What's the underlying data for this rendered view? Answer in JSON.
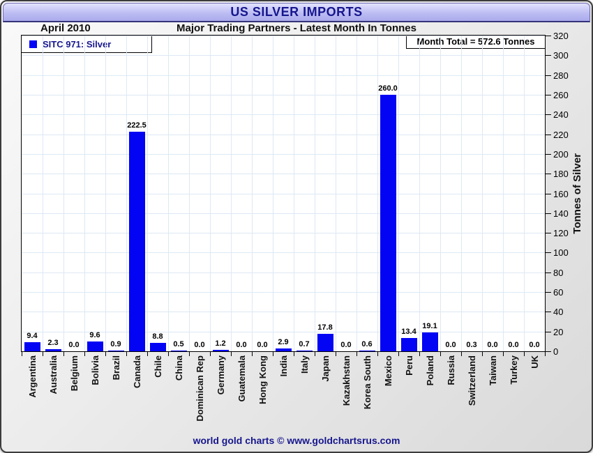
{
  "header": {
    "title": "US SILVER IMPORTS"
  },
  "subheader": {
    "period": "April 2010",
    "title": "Major Trading Partners - Latest Month In Tonnes"
  },
  "legend": {
    "label": "SITC 971: Silver"
  },
  "annotation": {
    "month_total_label": "Month Total = 572.6 Tonnes"
  },
  "chart_data": {
    "type": "bar",
    "title": "US SILVER IMPORTS",
    "subtitle": "Major Trading Partners - Latest Month In Tonnes",
    "period": "April 2010",
    "series_name": "SITC 971: Silver",
    "categories": [
      "Argentina",
      "Australia",
      "Belgium",
      "Bolivia",
      "Brazil",
      "Canada",
      "Chile",
      "China",
      "Dominican Rep",
      "Germany",
      "Guatemala",
      "Hong Kong",
      "India",
      "Italy",
      "Japan",
      "Kazakhstan",
      "Korea South",
      "Mexico",
      "Peru",
      "Poland",
      "Russia",
      "Switzerland",
      "Taiwan",
      "Turkey",
      "UK"
    ],
    "values": [
      9.4,
      2.3,
      0.0,
      9.6,
      0.9,
      222.5,
      8.8,
      0.5,
      0.0,
      1.2,
      0.0,
      0.0,
      2.9,
      0.7,
      17.8,
      0.0,
      0.6,
      260.0,
      13.4,
      19.1,
      0.0,
      0.3,
      0.0,
      0.0,
      0.0
    ],
    "ylabel": "Tonnes of Silver",
    "ylim": [
      0,
      320
    ],
    "ytick_step": 20,
    "y_ticks": [
      0,
      20,
      40,
      60,
      80,
      100,
      120,
      140,
      160,
      180,
      200,
      220,
      240,
      260,
      280,
      300,
      320
    ],
    "month_total_tonnes": 572.6,
    "grid": true,
    "legend_position": "top-left",
    "yaxis_position": "right"
  },
  "colors": {
    "bar": "#0404f5",
    "navy_text": "#16168e",
    "grid": "#dde8f4"
  },
  "footer": {
    "credit": "world gold charts © www.goldchartsrus.com"
  }
}
